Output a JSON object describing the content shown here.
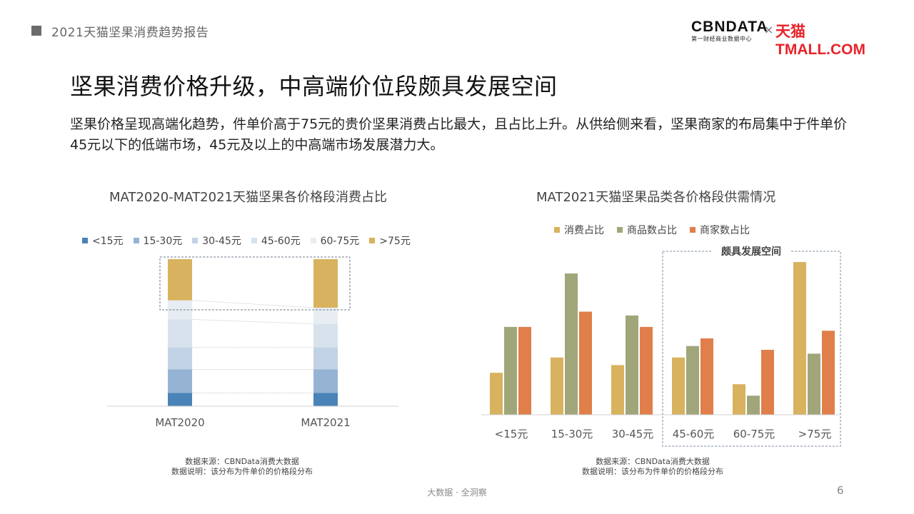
{
  "header": {
    "report_title": "2021天猫坚果消费趋势报告",
    "cbn_logo": "CBNDATA",
    "cbn_sub": "第一财经商业数据中心",
    "times": "×",
    "tmall_logo": "天猫TMALL.COM"
  },
  "headline": "坚果消费价格升级，中高端价位段颇具发展空间",
  "summary": "坚果价格呈现高端化趋势，件单价高于75元的贵价坚果消费占比最大，且占比上升。从供给侧来看，坚果商家的布局集中于件单价45元以下的低端市场，45元及以上的中高端市场发展潜力大。",
  "left_chart": {
    "source_line1": "数据来源：CBNData消费大数据",
    "source_line2": "数据说明：该分布为件单价的价格段分布"
  },
  "right_chart": {
    "annotation": "颇具发展空间",
    "source_line1": "数据来源：CBNData消费大数据",
    "source_line2": "数据说明：该分布为件单价的价格段分布"
  },
  "footer": {
    "tagline": "大数据 · 全洞察",
    "page_number": "6"
  },
  "colors": {
    "gold": "#d8b25e",
    "olive": "#a0a67a",
    "orange": "#e07f4a",
    "seg1": "#4a83b8",
    "seg2": "#95b4d4",
    "seg3": "#c1d3e5",
    "seg4": "#d7e2ed",
    "seg5": "#e8edf3"
  },
  "chart_data": [
    {
      "type": "bar",
      "stacked": true,
      "normalized": true,
      "title": "MAT2020-MAT2021天猫坚果各价格段消费占比",
      "categories": [
        "MAT2020",
        "MAT2021"
      ],
      "series": [
        {
          "name": "<15元",
          "values": [
            9,
            9
          ]
        },
        {
          "name": "15-30元",
          "values": [
            16,
            16
          ]
        },
        {
          "name": "30-45元",
          "values": [
            15,
            15
          ]
        },
        {
          "name": "45-60元",
          "values": [
            19,
            16
          ]
        },
        {
          "name": "60-75元",
          "values": [
            13,
            11
          ]
        },
        {
          "name": ">75元",
          "values": [
            28,
            33
          ]
        }
      ],
      "ylim": [
        0,
        100
      ],
      "legend": "top-left"
    },
    {
      "type": "bar",
      "title": "MAT2021天猫坚果品类各价格段供需情况",
      "categories": [
        "<15元",
        "15-30元",
        "30-45元",
        "45-60元",
        "60-75元",
        ">75元"
      ],
      "series": [
        {
          "name": "消费占比",
          "values": [
            11,
            15,
            13,
            15,
            8,
            40
          ]
        },
        {
          "name": "商品数占比",
          "values": [
            23,
            37,
            26,
            18,
            5,
            16
          ]
        },
        {
          "name": "商家数占比",
          "values": [
            23,
            27,
            23,
            20,
            17,
            22
          ]
        }
      ],
      "ylim": [
        0,
        42
      ],
      "legend": "top-center"
    }
  ]
}
